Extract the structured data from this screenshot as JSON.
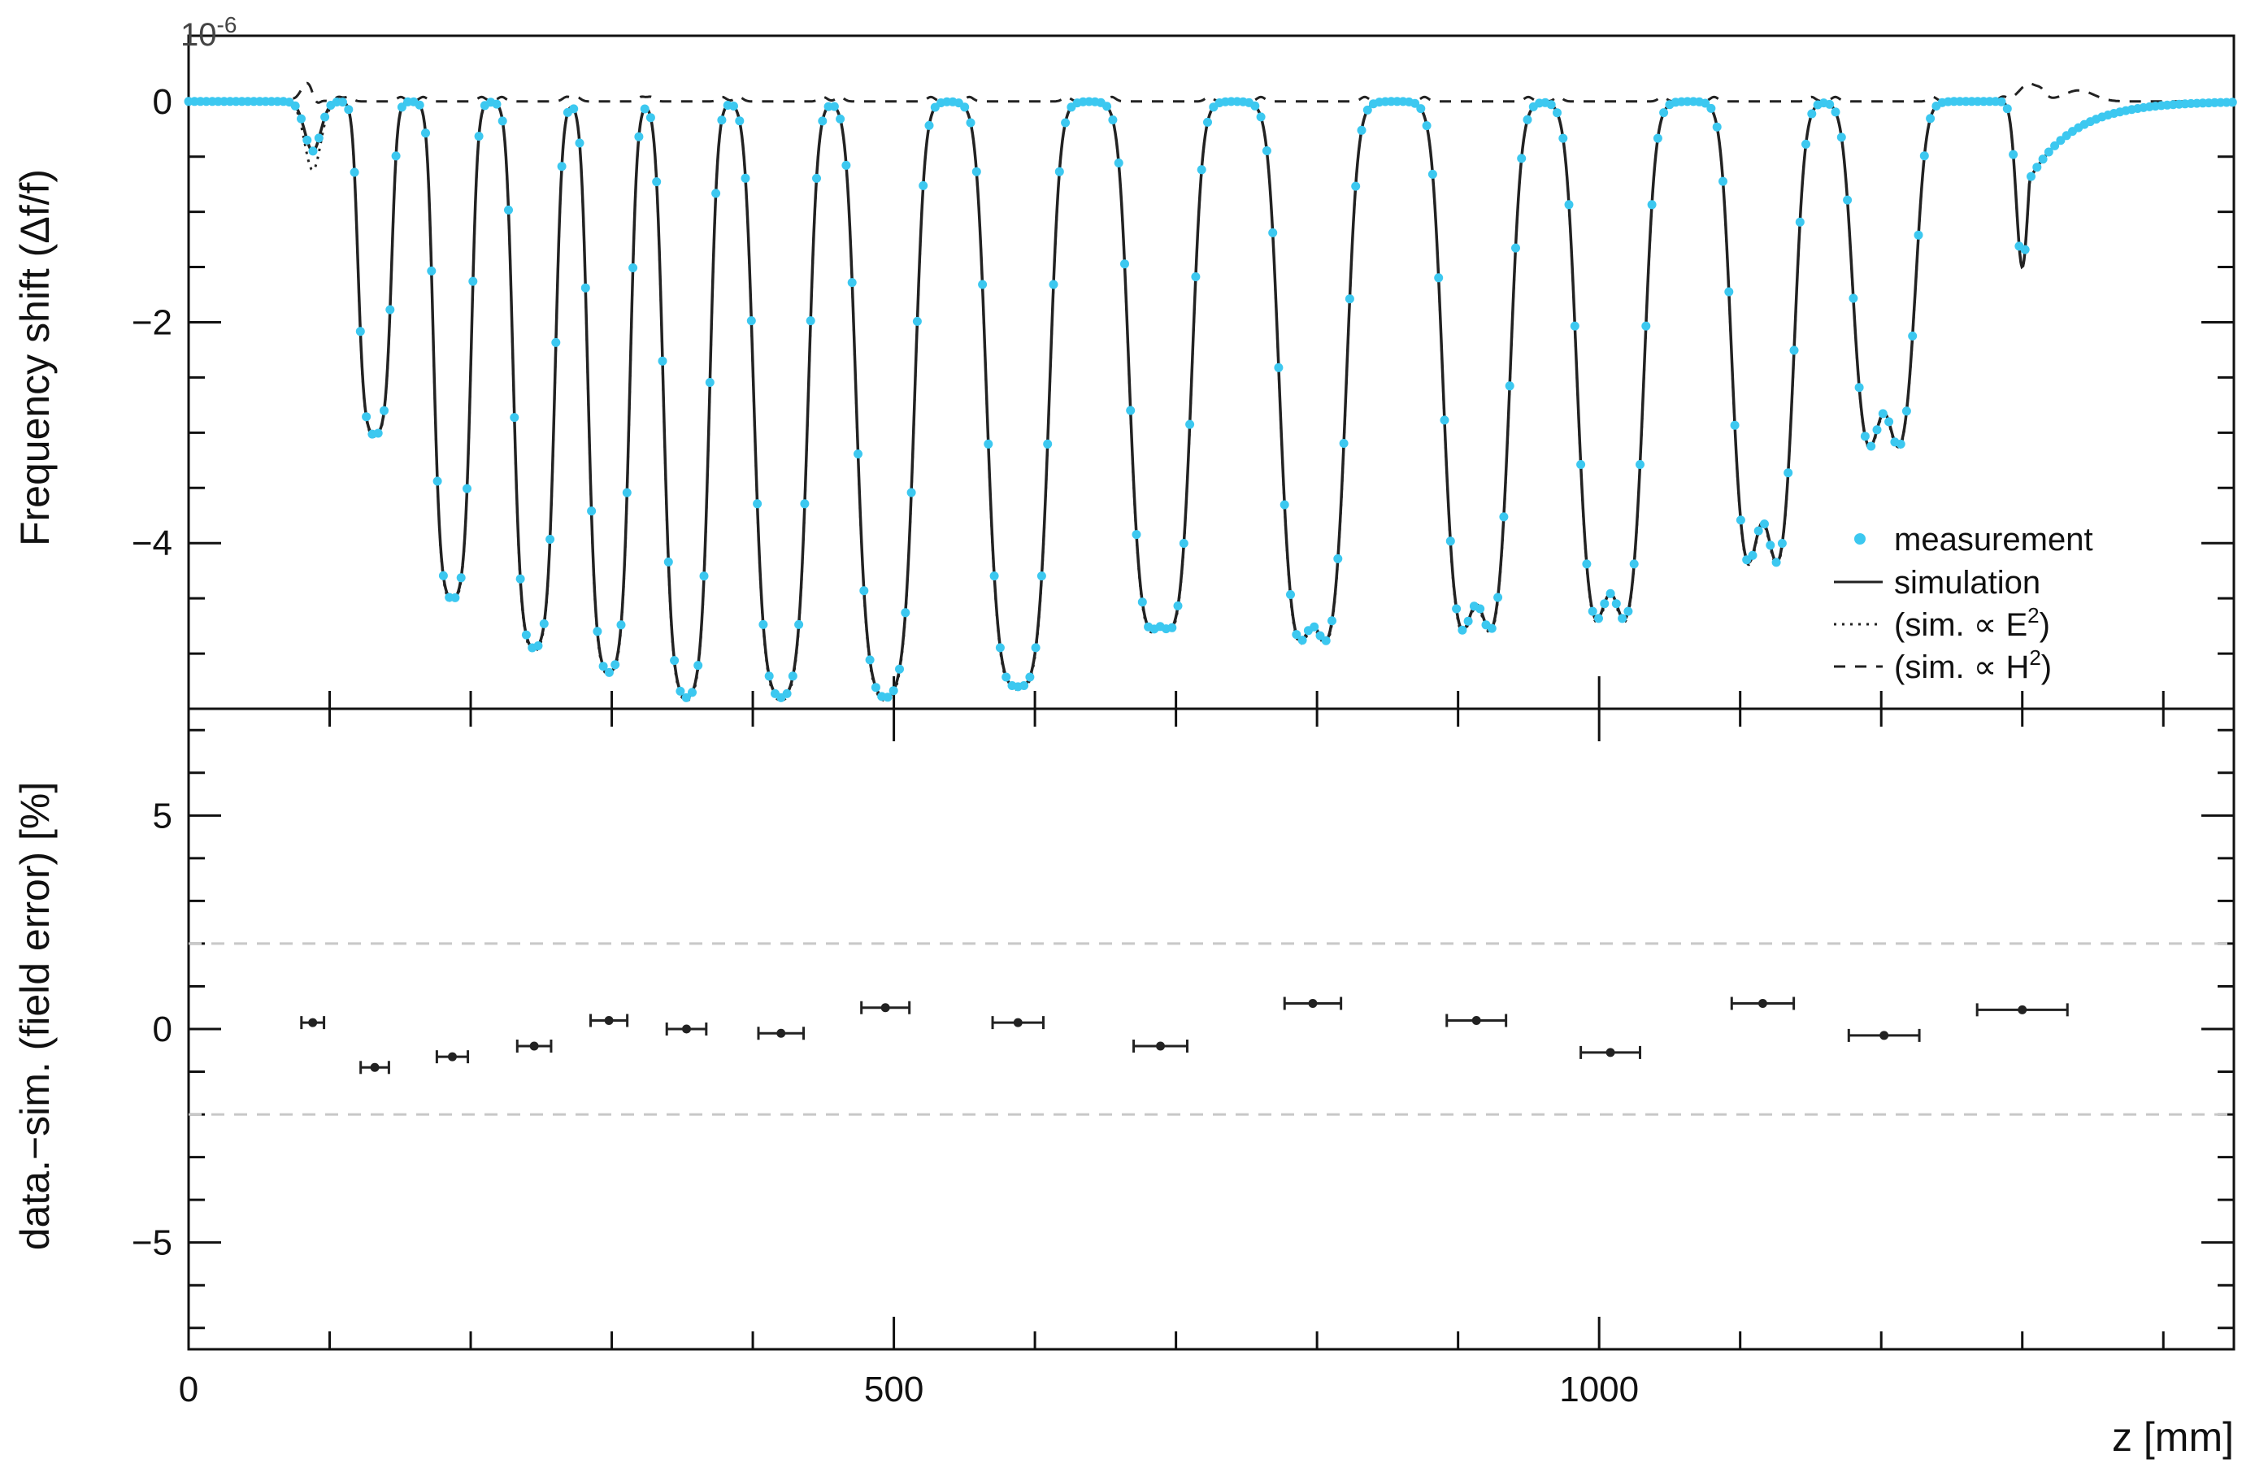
{
  "chart_data": [
    {
      "type": "scatter",
      "panel": "top",
      "xlabel": "",
      "ylabel": "Frequency shift (Δf/f)",
      "y_exponent_label": "10",
      "y_exponent_power": "-6",
      "xlim": [
        0,
        1450
      ],
      "ylim": [
        -5.5,
        0.3
      ],
      "y_ticks": [
        0,
        -2,
        -4
      ],
      "y_tick_labels": [
        "0",
        "−2",
        "−4"
      ],
      "grid": false,
      "legend_placement": "bottom-right",
      "legend": [
        {
          "label": "measurement",
          "style": "dots",
          "color": "#3cc8f0"
        },
        {
          "label": "simulation",
          "style": "solid",
          "color": "#222222"
        },
        {
          "label": "(sim. ∝ E",
          "sup": "2",
          "suffix": ")",
          "style": "dotted",
          "color": "#222222"
        },
        {
          "label": "(sim. ∝ H",
          "sup": "2",
          "suffix": ")",
          "style": "dashed",
          "color": "#222222"
        }
      ],
      "baseline_start_z": 0,
      "baseline_end_z": 1450,
      "dips": [
        {
          "z": 88,
          "depth": 0.45,
          "width": 8,
          "e2_depth": 0.62
        },
        {
          "z": 132,
          "depth": 3.05,
          "width": 8
        },
        {
          "z": 187,
          "depth": 4.55,
          "width": 9
        },
        {
          "z": 245,
          "depth": 5.0,
          "width": 10
        },
        {
          "z": 298,
          "depth": 5.22,
          "width": 10
        },
        {
          "z": 353,
          "depth": 5.45,
          "width": 11
        },
        {
          "z": 420,
          "depth": 5.45,
          "width": 13
        },
        {
          "z": 494,
          "depth": 5.45,
          "width": 14
        },
        {
          "z": 588,
          "depth": 5.42,
          "width": 15,
          "bump_depth": 5.35
        },
        {
          "z": 689,
          "depth": 5.0,
          "width": 15,
          "bump_depth": 4.8
        },
        {
          "z": 797,
          "depth": 5.2,
          "width": 16,
          "bump_depth": 4.8
        },
        {
          "z": 913,
          "depth": 5.15,
          "width": 16,
          "bump_depth": 4.6
        },
        {
          "z": 1008,
          "depth": 5.05,
          "width": 16,
          "bump_depth": 4.5
        },
        {
          "z": 1116,
          "depth": 4.55,
          "width": 15,
          "bump_depth": 3.85
        },
        {
          "z": 1202,
          "depth": 3.42,
          "width": 15,
          "bump_depth": 2.85
        },
        {
          "z": 1300,
          "depth": 1.5,
          "width": 6,
          "tail_to": 1380
        }
      ]
    },
    {
      "type": "scatter",
      "panel": "bottom",
      "xlabel": "z [mm]",
      "ylabel": "data.−sim. (field error) [%]",
      "xlim": [
        0,
        1450
      ],
      "ylim": [
        -7.5,
        7.5
      ],
      "x_ticks": [
        0,
        500,
        1000
      ],
      "x_tick_labels": [
        "0",
        "500",
        "1000"
      ],
      "y_ticks": [
        5,
        0,
        -5
      ],
      "y_tick_labels": [
        "5",
        "0",
        "−5"
      ],
      "reference_lines": [
        2,
        -2
      ],
      "points": [
        {
          "x": 88,
          "y": 0.15,
          "xerr": 8
        },
        {
          "x": 132,
          "y": -0.9,
          "xerr": 10
        },
        {
          "x": 187,
          "y": -0.65,
          "xerr": 11
        },
        {
          "x": 245,
          "y": -0.4,
          "xerr": 12
        },
        {
          "x": 298,
          "y": 0.2,
          "xerr": 13
        },
        {
          "x": 353,
          "y": 0.0,
          "xerr": 14
        },
        {
          "x": 420,
          "y": -0.1,
          "xerr": 16
        },
        {
          "x": 494,
          "y": 0.5,
          "xerr": 17
        },
        {
          "x": 588,
          "y": 0.15,
          "xerr": 18
        },
        {
          "x": 689,
          "y": -0.4,
          "xerr": 19
        },
        {
          "x": 797,
          "y": 0.6,
          "xerr": 20
        },
        {
          "x": 913,
          "y": 0.2,
          "xerr": 21
        },
        {
          "x": 1008,
          "y": -0.55,
          "xerr": 21
        },
        {
          "x": 1116,
          "y": 0.6,
          "xerr": 22
        },
        {
          "x": 1202,
          "y": -0.15,
          "xerr": 25
        },
        {
          "x": 1300,
          "y": 0.45,
          "xerr": 32
        }
      ]
    }
  ],
  "colors": {
    "measurement": "#3cc8f0",
    "simulation": "#222222",
    "reference_line": "#c8c8c8",
    "frame": "#111111"
  }
}
